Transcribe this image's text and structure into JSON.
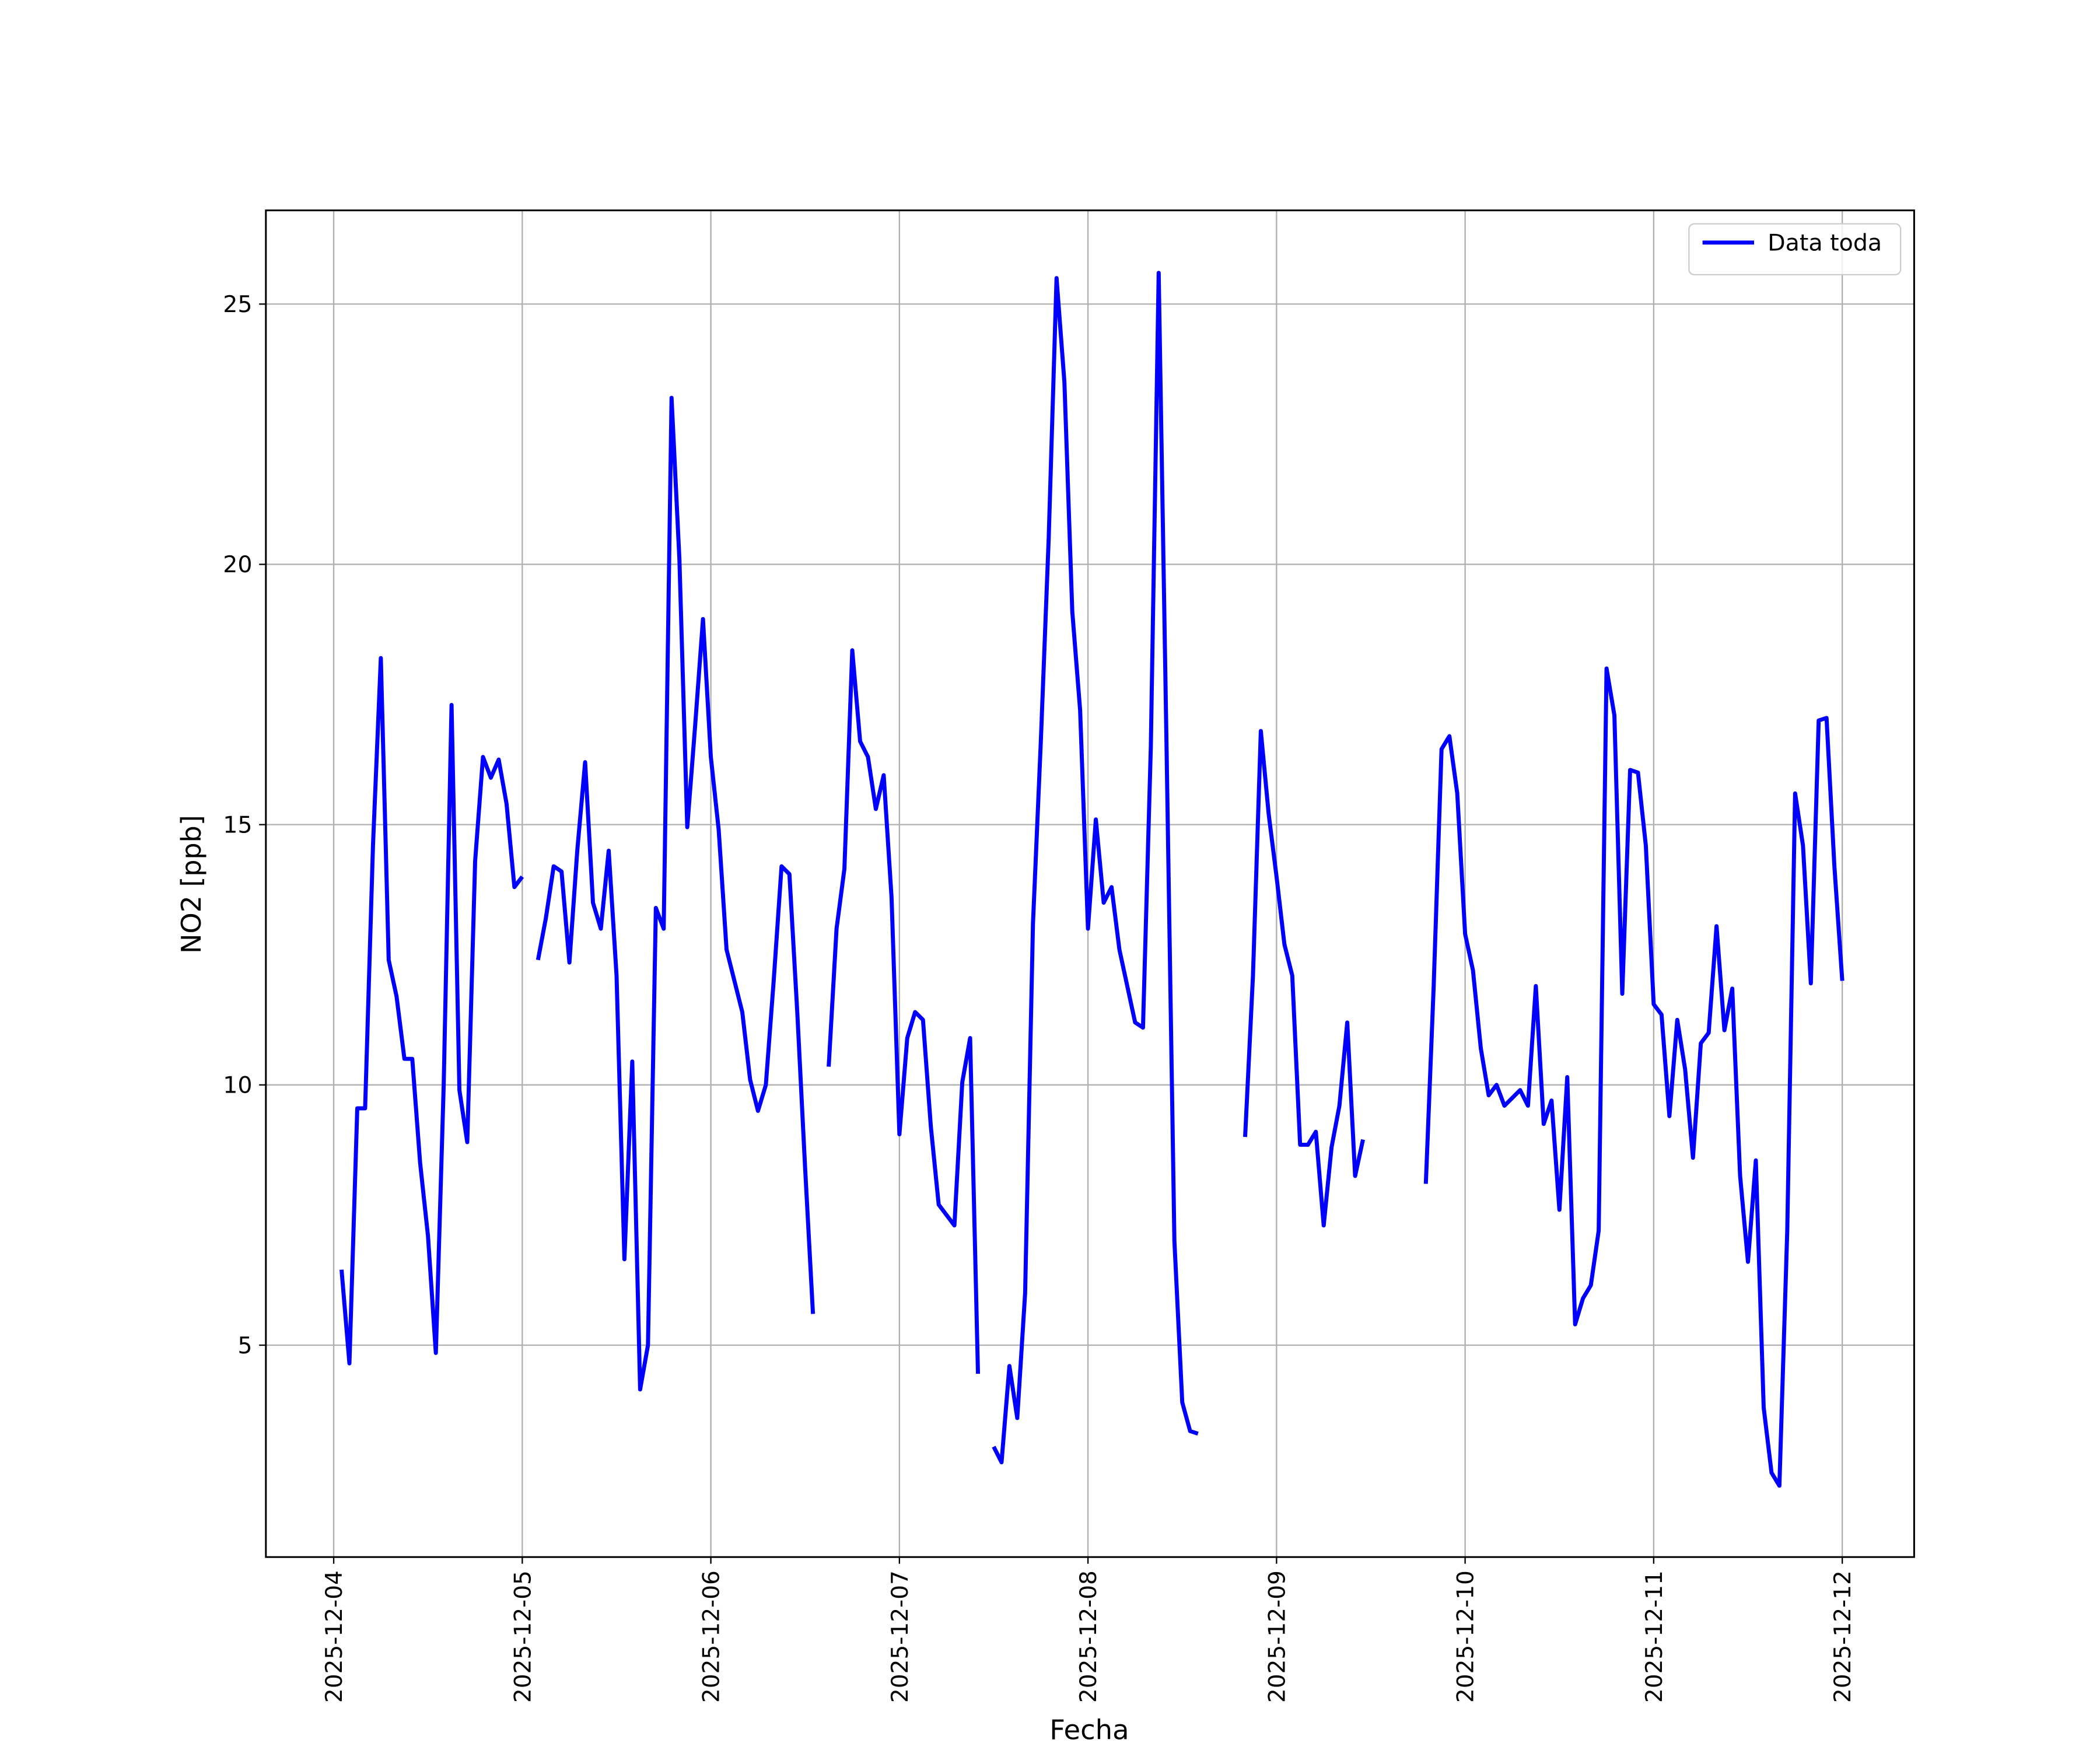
{
  "chart_data": {
    "type": "line",
    "xlabel": "Fecha",
    "ylabel": "NO2 [ppb]",
    "x": [
      1,
      2,
      3,
      4,
      5,
      6,
      7,
      8,
      9,
      10,
      11,
      12,
      13,
      14,
      15,
      16,
      17,
      18,
      19,
      20,
      21,
      22,
      23,
      24,
      25,
      26,
      27,
      28,
      29,
      30,
      31,
      32,
      33,
      34,
      35,
      36,
      37,
      38,
      39,
      40,
      41,
      42,
      43,
      44,
      45,
      46,
      47,
      48,
      49,
      50,
      51,
      52,
      53,
      54,
      55,
      56,
      57,
      58,
      59,
      60,
      61,
      62,
      63,
      64,
      65,
      66,
      67,
      68,
      69,
      70,
      71,
      72,
      73,
      74,
      75,
      76,
      77,
      78,
      79,
      80,
      81,
      82,
      83,
      84,
      85,
      86,
      87,
      88,
      89,
      90,
      91,
      92,
      93,
      94,
      95,
      96,
      97,
      98,
      99,
      100,
      101,
      102,
      103,
      104,
      105,
      106,
      107,
      108,
      109,
      110,
      111,
      112,
      113,
      114,
      115,
      116,
      117,
      118,
      119,
      120,
      121,
      122,
      123,
      124,
      125,
      126,
      127,
      128,
      129,
      130,
      131,
      132,
      133,
      134,
      135,
      136,
      137,
      138,
      139,
      140,
      141,
      142,
      143,
      144,
      145,
      146,
      147,
      148,
      149,
      150,
      151,
      152,
      153,
      154,
      155,
      156,
      157,
      158,
      159,
      160,
      161,
      162,
      163,
      164,
      165,
      166,
      167,
      168,
      169,
      170,
      171,
      172,
      173,
      174,
      175,
      176,
      177,
      178,
      179,
      180,
      181,
      182,
      183,
      184,
      185,
      186,
      187,
      188,
      189,
      190,
      191,
      192
    ],
    "series": [
      {
        "name": "Data toda",
        "color": "#0000ff",
        "values": [
          6.45,
          4.65,
          9.55,
          9.55,
          14.6,
          18.2,
          12.4,
          11.7,
          10.5,
          10.5,
          8.5,
          7.1,
          4.85,
          10.0,
          17.3,
          9.9,
          8.9,
          14.3,
          16.3,
          15.9,
          16.25,
          15.4,
          13.8,
          14.0,
          null,
          12.4,
          13.2,
          14.2,
          14.1,
          12.35,
          14.5,
          16.2,
          13.5,
          13.0,
          14.5,
          12.1,
          6.65,
          10.45,
          4.15,
          5.0,
          13.4,
          13.0,
          23.2,
          20.1,
          14.95,
          16.9,
          18.95,
          16.3,
          14.9,
          12.6,
          12.0,
          11.4,
          10.1,
          9.5,
          10.0,
          12.0,
          14.2,
          14.05,
          11.4,
          8.4,
          5.6,
          null,
          10.35,
          13.0,
          14.15,
          18.35,
          16.6,
          16.3,
          15.3,
          15.95,
          13.6,
          9.05,
          10.9,
          11.4,
          11.25,
          9.2,
          7.7,
          7.5,
          7.3,
          10.05,
          10.9,
          4.45,
          null,
          3.05,
          2.75,
          4.6,
          3.6,
          6.0,
          13.1,
          16.6,
          20.5,
          25.5,
          23.5,
          19.1,
          17.2,
          13.0,
          15.1,
          13.5,
          13.8,
          12.6,
          11.9,
          11.2,
          11.1,
          16.5,
          25.6,
          16.5,
          7.0,
          3.9,
          3.35,
          3.3,
          null,
          null,
          null,
          null,
          null,
          9.0,
          12.1,
          16.8,
          15.2,
          14.0,
          12.7,
          12.1,
          8.85,
          8.85,
          9.1,
          7.3,
          8.8,
          9.6,
          11.2,
          8.25,
          8.95,
          null,
          null,
          null,
          null,
          null,
          null,
          null,
          8.1,
          11.9,
          16.45,
          16.7,
          15.6,
          12.9,
          12.2,
          10.7,
          9.8,
          10.0,
          9.6,
          9.75,
          9.9,
          9.6,
          11.9,
          9.25,
          9.7,
          7.6,
          10.15,
          5.4,
          5.9,
          6.15,
          7.2,
          18.0,
          17.1,
          11.75,
          16.05,
          16.0,
          14.6,
          11.55,
          11.35,
          9.4,
          11.25,
          10.3,
          8.6,
          10.8,
          11.0,
          13.05,
          11.05,
          11.85,
          8.25,
          6.6,
          8.55,
          3.8,
          2.55,
          2.3,
          7.2,
          15.6,
          14.6,
          11.95,
          17.0,
          17.05,
          14.2,
          12.0
        ]
      }
    ],
    "xlim": [
      -8.63,
      201.15
    ],
    "xticks": [
      {
        "value": 0,
        "label": "2025-12-04"
      },
      {
        "value": 24,
        "label": "2025-12-05"
      },
      {
        "value": 48,
        "label": "2025-12-06"
      },
      {
        "value": 72,
        "label": "2025-12-07"
      },
      {
        "value": 96,
        "label": "2025-12-08"
      },
      {
        "value": 120,
        "label": "2025-12-09"
      },
      {
        "value": 144,
        "label": "2025-12-10"
      },
      {
        "value": 168,
        "label": "2025-12-11"
      },
      {
        "value": 192,
        "label": "2025-12-12"
      }
    ],
    "ylim": [
      0.93,
      26.8
    ],
    "yticks": [
      5,
      10,
      15,
      20,
      25
    ],
    "grid": true,
    "legend": "upper right"
  }
}
